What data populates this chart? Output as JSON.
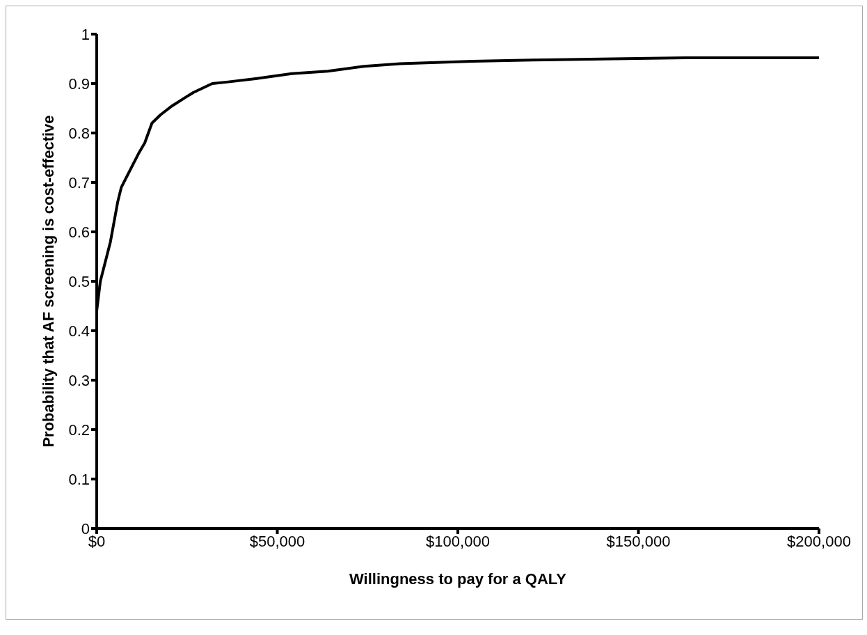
{
  "chart_data": {
    "type": "line",
    "xlabel": "Willingness to pay for a QALY",
    "ylabel": "Probability that AF screening is cost-effective",
    "x": [
      0,
      1000,
      3800,
      5800,
      6800,
      11700,
      13300,
      15300,
      17700,
      20900,
      24800,
      26800,
      32000,
      36000,
      44000,
      54000,
      64000,
      74000,
      84000,
      104000,
      124000,
      143000,
      163000,
      200000
    ],
    "series": [
      {
        "color": "#000000",
        "values": [
          0.44,
          0.5,
          0.58,
          0.66,
          0.69,
          0.76,
          0.78,
          0.82,
          0.837,
          0.855,
          0.873,
          0.882,
          0.9,
          0.903,
          0.91,
          0.92,
          0.925,
          0.935,
          0.94,
          0.945,
          0.948,
          0.95,
          0.952,
          0.952
        ]
      }
    ],
    "xlim": [
      0,
      200000
    ],
    "xticks": [
      {
        "value": 0,
        "label": "$0"
      },
      {
        "value": 50000,
        "label": "$50,000"
      },
      {
        "value": 100000,
        "label": "$100,000"
      },
      {
        "value": 150000,
        "label": "$150,000"
      },
      {
        "value": 200000,
        "label": "$200,000"
      }
    ],
    "ylim": [
      0,
      1
    ],
    "yticks": [
      0,
      0.1,
      0.2,
      0.3,
      0.4,
      0.5,
      0.6,
      0.7,
      0.8,
      0.9,
      1
    ],
    "grid": false,
    "marker": "none",
    "line_style": "solid"
  }
}
